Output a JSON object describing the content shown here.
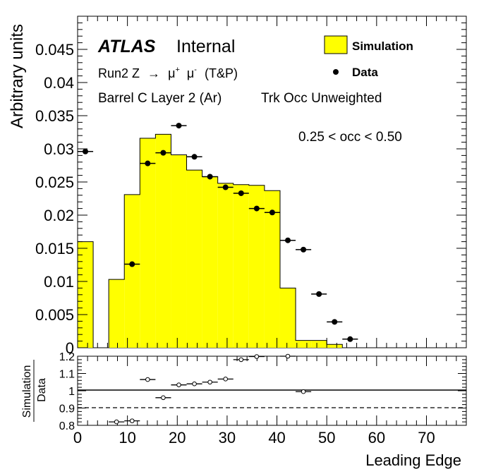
{
  "chart_data": [
    {
      "type": "histogram",
      "ylabel": "Arbitrary units",
      "xlim": [
        0,
        78
      ],
      "ylim": [
        0,
        0.05
      ],
      "bin_edges": [
        0,
        3.125,
        6.25,
        9.375,
        12.5,
        15.625,
        18.75,
        21.875,
        25,
        28.125,
        31.25,
        34.375,
        37.5,
        40.625,
        43.75,
        46.875,
        50,
        53.125,
        56.25
      ],
      "yticks": [
        "0",
        "0.005",
        "0.01",
        "0.015",
        "0.02",
        "0.025",
        "0.03",
        "0.035",
        "0.04",
        "0.045"
      ],
      "ytick_values": [
        0,
        0.005,
        0.01,
        0.015,
        0.02,
        0.025,
        0.03,
        0.035,
        0.04,
        0.045
      ],
      "series": [
        {
          "name": "Simulation",
          "style": "filled-histogram",
          "color": "#ffff00",
          "values": [
            0.016,
            0,
            0.0103,
            0.0231,
            0.0316,
            0.0322,
            0.0291,
            0.0268,
            0.0258,
            0.0248,
            0.0246,
            0.0245,
            0.0237,
            0.009,
            0.0011,
            0.0011,
            0.0005,
            0
          ]
        },
        {
          "name": "Data",
          "style": "points",
          "color": "#000000",
          "x": [
            1.5625,
            10.9375,
            14.0625,
            17.1875,
            20.3125,
            23.4375,
            26.5625,
            29.6875,
            32.8125,
            35.9375,
            39.0625,
            42.1875,
            45.3125,
            48.4375,
            51.5625,
            54.6875
          ],
          "values": [
            0.0296,
            0.0126,
            0.0278,
            0.0294,
            0.0335,
            0.0288,
            0.0258,
            0.0242,
            0.0233,
            0.021,
            0.0204,
            0.0162,
            0.0148,
            0.0081,
            0.0039,
            0.0013
          ]
        }
      ],
      "legend": {
        "position": "top-right",
        "entries": [
          {
            "label": "Simulation",
            "marker": "filled-box"
          },
          {
            "label": "Data",
            "marker": "dot"
          }
        ]
      },
      "annotations": {
        "atlas": "ATLAS",
        "atlas_status": "Internal",
        "process_prefix": "Run2 Z",
        "arrow": "→",
        "mu": "μ",
        "mu_plus": "+",
        "mu_minus": "-",
        "process_suffix": "(T&P)",
        "region": "Barrel C Layer 2 (Ar)",
        "weighting": "Trk Occ Unweighted",
        "cut": "0.25 < occ < 0.50"
      }
    },
    {
      "type": "scatter",
      "ylabel_top": "Simulation",
      "ylabel_bottom": "Data",
      "xlabel": "Leading Edge",
      "xlim": [
        0,
        78
      ],
      "ylim": [
        0.8,
        1.2
      ],
      "xticks": [
        "0",
        "10",
        "20",
        "30",
        "40",
        "50",
        "60",
        "70"
      ],
      "xtick_values": [
        0,
        10,
        20,
        30,
        40,
        50,
        60,
        70
      ],
      "yticks": [
        "0.8",
        "0.9",
        "1",
        "1.1",
        "1.2"
      ],
      "ytick_values": [
        0.8,
        0.9,
        1.0,
        1.1,
        1.2
      ],
      "reference_lines": [
        {
          "y": 1.0,
          "style": "solid"
        },
        {
          "y": 0.9,
          "style": "dashed"
        }
      ],
      "ratio_points": {
        "x": [
          7.8125,
          10.9375,
          14.0625,
          17.1875,
          20.3125,
          23.4375,
          26.5625,
          29.6875,
          32.8125,
          35.9375,
          42.1875,
          45.3125
        ],
        "values": [
          0.82,
          0.826,
          1.065,
          0.96,
          1.034,
          1.04,
          1.05,
          1.068,
          1.18,
          1.198,
          1.2,
          0.995
        ]
      }
    }
  ]
}
